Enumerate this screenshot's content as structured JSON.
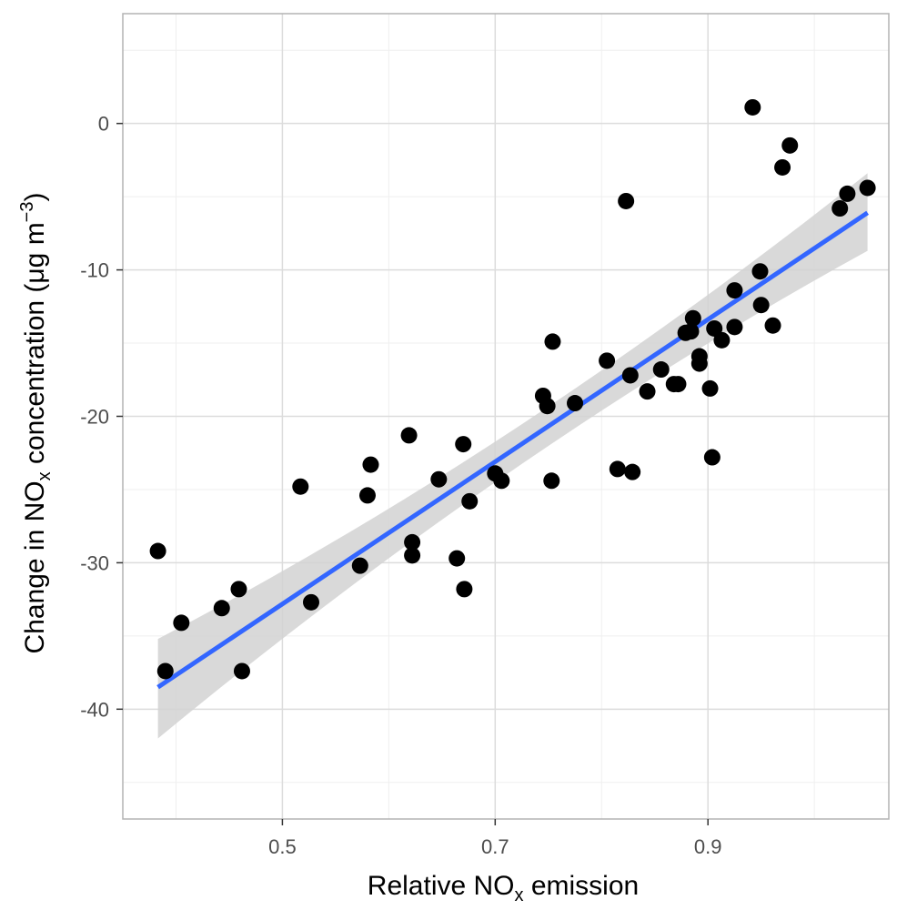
{
  "chart_data": {
    "type": "scatter",
    "xlabel": {
      "prefix": "Relative NO",
      "sub": "x",
      "suffix": " emission"
    },
    "ylabel": {
      "prefix": "Change in NO",
      "sub": "x",
      "middle": " concentration (μg m",
      "sup": "−3",
      "suffix": ")"
    },
    "xlim": [
      0.35,
      1.07
    ],
    "ylim": [
      -47.5,
      7.5
    ],
    "x_ticks": [
      0.5,
      0.7,
      0.9
    ],
    "x_tick_labels": [
      "0.5",
      "0.7",
      "0.9"
    ],
    "y_ticks": [
      -40,
      -30,
      -20,
      -10,
      0
    ],
    "y_tick_labels": [
      "-40",
      "-30",
      "-20",
      "-10",
      "0"
    ],
    "grid": true,
    "points": [
      [
        0.383,
        -29.2
      ],
      [
        0.39,
        -37.4
      ],
      [
        0.405,
        -34.1
      ],
      [
        0.443,
        -33.1
      ],
      [
        0.459,
        -31.8
      ],
      [
        0.462,
        -37.4
      ],
      [
        0.517,
        -24.8
      ],
      [
        0.527,
        -32.7
      ],
      [
        0.573,
        -30.2
      ],
      [
        0.58,
        -25.4
      ],
      [
        0.583,
        -23.3
      ],
      [
        0.619,
        -21.3
      ],
      [
        0.622,
        -28.6
      ],
      [
        0.622,
        -29.5
      ],
      [
        0.647,
        -24.3
      ],
      [
        0.664,
        -29.7
      ],
      [
        0.67,
        -21.9
      ],
      [
        0.671,
        -31.8
      ],
      [
        0.676,
        -25.8
      ],
      [
        0.7,
        -23.9
      ],
      [
        0.706,
        -24.4
      ],
      [
        0.745,
        -18.6
      ],
      [
        0.749,
        -19.3
      ],
      [
        0.753,
        -24.4
      ],
      [
        0.754,
        -14.9
      ],
      [
        0.775,
        -19.1
      ],
      [
        0.805,
        -16.2
      ],
      [
        0.815,
        -23.6
      ],
      [
        0.823,
        -5.3
      ],
      [
        0.827,
        -17.2
      ],
      [
        0.829,
        -23.8
      ],
      [
        0.843,
        -18.3
      ],
      [
        0.856,
        -16.8
      ],
      [
        0.868,
        -17.8
      ],
      [
        0.872,
        -17.8
      ],
      [
        0.879,
        -14.3
      ],
      [
        0.884,
        -14.2
      ],
      [
        0.886,
        -13.3
      ],
      [
        0.892,
        -15.9
      ],
      [
        0.892,
        -16.4
      ],
      [
        0.902,
        -18.1
      ],
      [
        0.904,
        -22.8
      ],
      [
        0.906,
        -14.0
      ],
      [
        0.913,
        -14.8
      ],
      [
        0.925,
        -11.4
      ],
      [
        0.925,
        -13.9
      ],
      [
        0.942,
        1.1
      ],
      [
        0.949,
        -10.1
      ],
      [
        0.95,
        -12.4
      ],
      [
        0.961,
        -13.8
      ],
      [
        0.97,
        -3.0
      ],
      [
        0.977,
        -1.5
      ],
      [
        1.024,
        -5.8
      ],
      [
        1.031,
        -4.8
      ],
      [
        1.05,
        -4.4
      ]
    ],
    "fit": {
      "x": [
        0.383,
        1.05
      ],
      "y": [
        -38.5,
        -6.1
      ],
      "ci_upper": [
        -35.2,
        -3.4
      ],
      "ci_lower": [
        -42.0,
        -8.7
      ],
      "line_color": "#3366ff",
      "band_color": "#d2d2d2"
    },
    "point_color": "#000000",
    "grid_major_color": "#dcdcdc",
    "grid_minor_color": "#efefef",
    "panel_border_color": "#b3b3b3"
  }
}
